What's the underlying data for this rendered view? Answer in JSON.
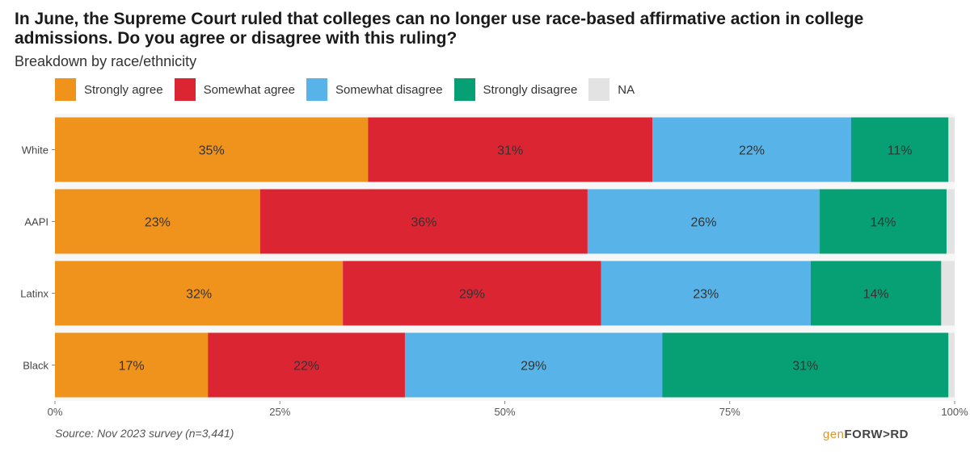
{
  "chart_data": {
    "type": "bar",
    "orientation": "horizontal",
    "stacked": true,
    "title": "In June, the Supreme Court ruled that colleges can no longer use race-based affirmative action in college admissions. Do you agree or disagree with this ruling?",
    "subtitle": "Breakdown by race/ethnicity",
    "categories": [
      "White",
      "AAPI",
      "Latinx",
      "Black"
    ],
    "series": [
      {
        "name": "Strongly agree",
        "color": "#f0931c",
        "values": [
          35,
          23,
          32,
          17
        ],
        "labels": [
          "35%",
          "23%",
          "32%",
          "17%"
        ]
      },
      {
        "name": "Somewhat agree",
        "color": "#dc2532",
        "values": [
          31,
          36,
          29,
          22
        ],
        "labels": [
          "31%",
          "36%",
          "29%",
          "22%"
        ]
      },
      {
        "name": "Somewhat disagree",
        "color": "#58b4e8",
        "values": [
          22,
          26,
          23,
          29
        ],
        "labels": [
          "22%",
          "26%",
          "23%",
          "29%"
        ]
      },
      {
        "name": "Strongly disagree",
        "color": "#079f74",
        "values": [
          11,
          14,
          14,
          31
        ],
        "labels": [
          "11%",
          "14%",
          "14%",
          "31%"
        ]
      },
      {
        "name": "NA",
        "color": "#e3e3e3",
        "values": [
          1,
          1,
          2,
          1
        ],
        "labels": [
          "",
          "",
          "",
          ""
        ]
      }
    ],
    "bar_extents": [
      [
        0,
        34.8,
        66.4,
        88.5,
        99.3
      ],
      [
        0,
        22.8,
        59.2,
        85.0,
        99.1
      ],
      [
        0,
        32.0,
        60.7,
        84.0,
        98.5
      ],
      [
        0,
        17.0,
        38.9,
        67.5,
        99.3
      ]
    ],
    "xlim": [
      0,
      100
    ],
    "xticks": [
      0,
      25,
      50,
      75,
      100
    ],
    "xtick_labels": [
      "0%",
      "25%",
      "50%",
      "75%",
      "100%"
    ],
    "xlabel": "",
    "ylabel": "",
    "legend_position": "top-left"
  },
  "source": "Source: Nov 2023 survey (n=3,441)",
  "logo": {
    "prefix": "gen",
    "word": "FORW>RD"
  }
}
